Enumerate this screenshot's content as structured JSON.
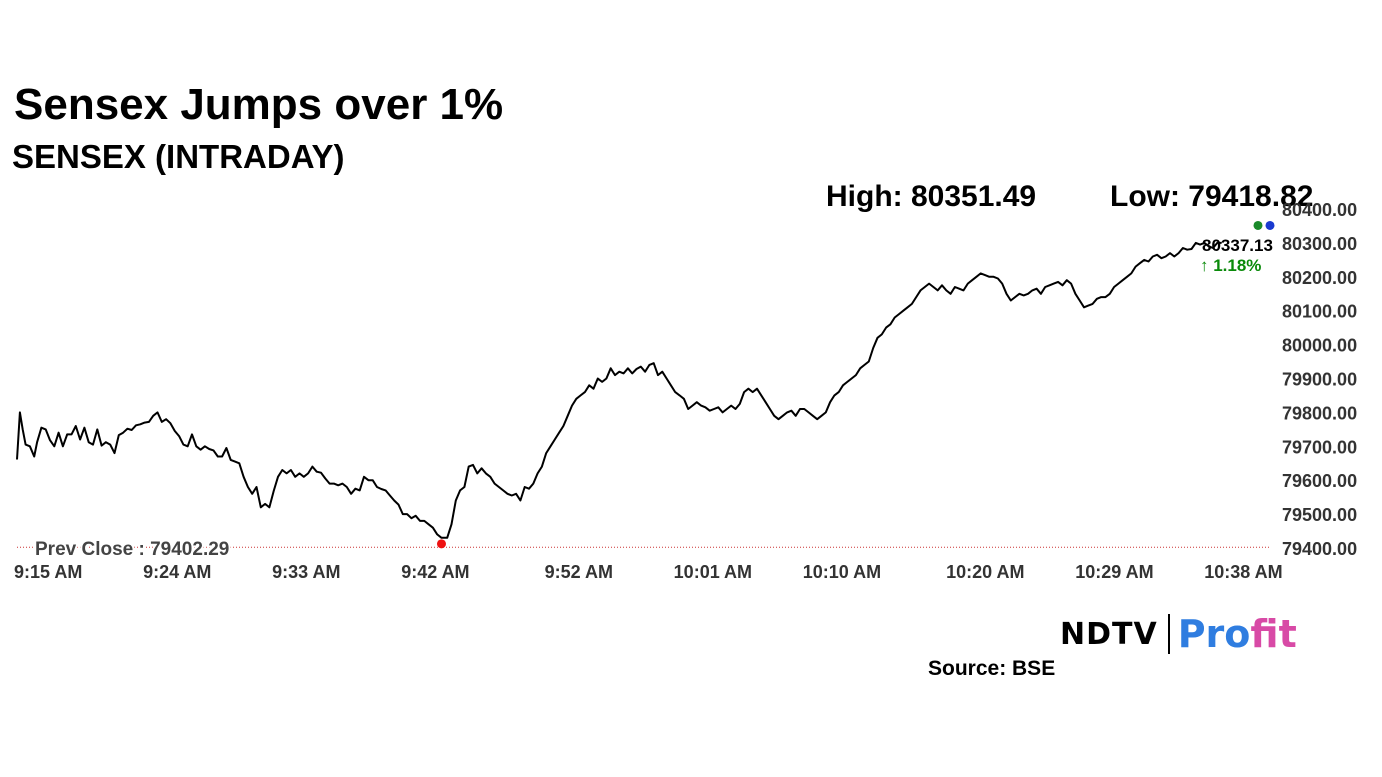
{
  "header": {
    "title": "Sensex Jumps over 1%",
    "subtitle": "SENSEX (INTRADAY)",
    "high_label": "High: 80351.49",
    "low_label": "Low: 79418.82"
  },
  "colors": {
    "line": "#000000",
    "prev_close_line": "#cc3333",
    "up_green": "#0a8a0a",
    "low_marker": "#ee1111",
    "high_marker_green": "#1a8a2a",
    "high_marker_blue": "#1a3ad0"
  },
  "branding": {
    "ndtv": "NDTV",
    "profit_a": "Pro",
    "profit_b": "fit",
    "source": "Source: BSE"
  },
  "chart_data": {
    "type": "line",
    "title": "SENSEX (INTRADAY)",
    "xlabel": "",
    "ylabel": "",
    "ylim": [
      79400,
      80400
    ],
    "xlim": [
      0,
      88
    ],
    "yticks": [
      "80400.00",
      "80300.00",
      "80200.00",
      "80100.00",
      "80000.00",
      "79900.00",
      "79800.00",
      "79700.00",
      "79600.00",
      "79500.00",
      "79400.00"
    ],
    "xticks": [
      {
        "label": "9:15 AM",
        "t": 0
      },
      {
        "label": "9:24 AM",
        "t": 9
      },
      {
        "label": "9:33 AM",
        "t": 18
      },
      {
        "label": "9:42 AM",
        "t": 27
      },
      {
        "label": "9:52 AM",
        "t": 37
      },
      {
        "label": "10:01 AM",
        "t": 46
      },
      {
        "label": "10:10 AM",
        "t": 55
      },
      {
        "label": "10:20 AM",
        "t": 65
      },
      {
        "label": "10:29 AM",
        "t": 74
      },
      {
        "label": "10:38 AM",
        "t": 83
      }
    ],
    "prev_close": 79402.29,
    "prev_close_label": "Prev Close : 79402.29",
    "last_value_label": "80337.13",
    "change_label": "↑ 1.18%",
    "high": 80351.49,
    "low": 79418.82,
    "series": [
      {
        "points": [
          [
            0,
            79661
          ],
          [
            0.2,
            79800
          ],
          [
            0.4,
            79750
          ],
          [
            0.6,
            79705
          ],
          [
            0.9,
            79700
          ],
          [
            1.2,
            79670
          ],
          [
            1.4,
            79712
          ],
          [
            1.7,
            79755
          ],
          [
            2.0,
            79750
          ],
          [
            2.3,
            79718
          ],
          [
            2.6,
            79700
          ],
          [
            2.9,
            79740
          ],
          [
            3.2,
            79700
          ],
          [
            3.5,
            79735
          ],
          [
            3.8,
            79735
          ],
          [
            4.1,
            79760
          ],
          [
            4.4,
            79720
          ],
          [
            4.7,
            79755
          ],
          [
            5.0,
            79712
          ],
          [
            5.3,
            79705
          ],
          [
            5.6,
            79750
          ],
          [
            5.9,
            79702
          ],
          [
            6.2,
            79712
          ],
          [
            6.5,
            79705
          ],
          [
            6.8,
            79680
          ],
          [
            7.1,
            79733
          ],
          [
            7.4,
            79740
          ],
          [
            7.7,
            79752
          ],
          [
            8.0,
            79748
          ],
          [
            8.3,
            79762
          ],
          [
            8.6,
            79765
          ],
          [
            8.9,
            79770
          ],
          [
            9.2,
            79772
          ],
          [
            9.5,
            79790
          ],
          [
            9.8,
            79800
          ],
          [
            10.1,
            79772
          ],
          [
            10.4,
            79780
          ],
          [
            10.7,
            79768
          ],
          [
            11.0,
            79745
          ],
          [
            11.3,
            79730
          ],
          [
            11.6,
            79705
          ],
          [
            11.9,
            79700
          ],
          [
            12.2,
            79735
          ],
          [
            12.5,
            79700
          ],
          [
            12.8,
            79690
          ],
          [
            13.1,
            79700
          ],
          [
            13.4,
            79692
          ],
          [
            13.7,
            79688
          ],
          [
            14.0,
            79670
          ],
          [
            14.3,
            79670
          ],
          [
            14.6,
            79695
          ],
          [
            14.9,
            79660
          ],
          [
            15.2,
            79655
          ],
          [
            15.5,
            79650
          ],
          [
            15.8,
            79610
          ],
          [
            16.1,
            79580
          ],
          [
            16.4,
            79560
          ],
          [
            16.7,
            79580
          ],
          [
            17.0,
            79520
          ],
          [
            17.3,
            79530
          ],
          [
            17.6,
            79520
          ],
          [
            17.9,
            79568
          ],
          [
            18.2,
            79610
          ],
          [
            18.5,
            79630
          ],
          [
            18.8,
            79620
          ],
          [
            19.1,
            79630
          ],
          [
            19.4,
            79610
          ],
          [
            19.7,
            79620
          ],
          [
            20.0,
            79610
          ],
          [
            20.3,
            79620
          ],
          [
            20.6,
            79640
          ],
          [
            20.9,
            79625
          ],
          [
            21.2,
            79622
          ],
          [
            21.5,
            79605
          ],
          [
            21.8,
            79590
          ],
          [
            22.1,
            79590
          ],
          [
            22.4,
            79585
          ],
          [
            22.7,
            79590
          ],
          [
            23.0,
            79580
          ],
          [
            23.3,
            79560
          ],
          [
            23.6,
            79575
          ],
          [
            23.9,
            79570
          ],
          [
            24.2,
            79610
          ],
          [
            24.5,
            79600
          ],
          [
            24.8,
            79600
          ],
          [
            25.1,
            79580
          ],
          [
            25.4,
            79574
          ],
          [
            25.7,
            79570
          ],
          [
            26.0,
            79555
          ],
          [
            26.3,
            79540
          ],
          [
            26.6,
            79528
          ],
          [
            26.9,
            79500
          ],
          [
            27.2,
            79500
          ],
          [
            27.5,
            79488
          ],
          [
            27.8,
            79495
          ],
          [
            28.1,
            79480
          ],
          [
            28.4,
            79480
          ],
          [
            28.7,
            79470
          ],
          [
            29.0,
            79460
          ],
          [
            29.3,
            79440
          ],
          [
            29.6,
            79430
          ],
          [
            30.0,
            79430
          ],
          [
            30.3,
            79470
          ],
          [
            30.6,
            79540
          ],
          [
            30.9,
            79570
          ],
          [
            31.2,
            79580
          ],
          [
            31.5,
            79640
          ],
          [
            31.8,
            79645
          ],
          [
            32.1,
            79620
          ],
          [
            32.4,
            79635
          ],
          [
            32.7,
            79620
          ],
          [
            33.0,
            79610
          ],
          [
            33.3,
            79590
          ],
          [
            33.6,
            79580
          ],
          [
            33.9,
            79570
          ],
          [
            34.2,
            79560
          ],
          [
            34.5,
            79555
          ],
          [
            34.8,
            79560
          ],
          [
            35.1,
            79540
          ],
          [
            35.4,
            79580
          ],
          [
            35.7,
            79575
          ],
          [
            36.0,
            79590
          ],
          [
            36.3,
            79620
          ],
          [
            36.6,
            79640
          ],
          [
            36.9,
            79680
          ],
          [
            37.2,
            79700
          ],
          [
            37.5,
            79720
          ],
          [
            37.8,
            79740
          ],
          [
            38.1,
            79760
          ],
          [
            38.4,
            79790
          ],
          [
            38.7,
            79820
          ],
          [
            39.0,
            79840
          ],
          [
            39.3,
            79850
          ],
          [
            39.6,
            79860
          ],
          [
            39.9,
            79880
          ],
          [
            40.2,
            79870
          ],
          [
            40.5,
            79900
          ],
          [
            40.8,
            79890
          ],
          [
            41.1,
            79900
          ],
          [
            41.4,
            79930
          ],
          [
            41.7,
            79910
          ],
          [
            42.0,
            79920
          ],
          [
            42.3,
            79915
          ],
          [
            42.6,
            79930
          ],
          [
            42.9,
            79915
          ],
          [
            43.2,
            79928
          ],
          [
            43.5,
            79935
          ],
          [
            43.8,
            79920
          ],
          [
            44.1,
            79940
          ],
          [
            44.4,
            79945
          ],
          [
            44.7,
            79910
          ],
          [
            45.0,
            79920
          ],
          [
            45.3,
            79900
          ],
          [
            45.6,
            79880
          ],
          [
            45.9,
            79860
          ],
          [
            46.2,
            79850
          ],
          [
            46.5,
            79840
          ],
          [
            46.8,
            79810
          ],
          [
            47.1,
            79820
          ],
          [
            47.4,
            79830
          ],
          [
            47.7,
            79820
          ],
          [
            48.0,
            79815
          ],
          [
            48.3,
            79805
          ],
          [
            48.6,
            79810
          ],
          [
            48.9,
            79815
          ],
          [
            49.2,
            79800
          ],
          [
            49.5,
            79810
          ],
          [
            49.8,
            79820
          ],
          [
            50.1,
            79810
          ],
          [
            50.4,
            79825
          ],
          [
            50.7,
            79860
          ],
          [
            51.0,
            79870
          ],
          [
            51.3,
            79860
          ],
          [
            51.6,
            79870
          ],
          [
            51.9,
            79850
          ],
          [
            52.2,
            79830
          ],
          [
            52.5,
            79810
          ],
          [
            52.8,
            79790
          ],
          [
            53.1,
            79780
          ],
          [
            53.4,
            79790
          ],
          [
            53.7,
            79800
          ],
          [
            54.0,
            79805
          ],
          [
            54.3,
            79790
          ],
          [
            54.6,
            79810
          ],
          [
            54.9,
            79810
          ],
          [
            55.2,
            79800
          ],
          [
            55.5,
            79790
          ],
          [
            55.8,
            79780
          ],
          [
            56.1,
            79790
          ],
          [
            56.4,
            79800
          ],
          [
            56.7,
            79830
          ],
          [
            57.0,
            79850
          ],
          [
            57.3,
            79860
          ],
          [
            57.6,
            79880
          ],
          [
            57.9,
            79890
          ],
          [
            58.2,
            79900
          ],
          [
            58.5,
            79910
          ],
          [
            58.8,
            79930
          ],
          [
            59.1,
            79940
          ],
          [
            59.4,
            79950
          ],
          [
            59.7,
            79990
          ],
          [
            60.0,
            80020
          ],
          [
            60.3,
            80030
          ],
          [
            60.6,
            80050
          ],
          [
            60.9,
            80060
          ],
          [
            61.2,
            80080
          ],
          [
            61.5,
            80090
          ],
          [
            61.8,
            80100
          ],
          [
            62.1,
            80110
          ],
          [
            62.4,
            80120
          ],
          [
            62.7,
            80140
          ],
          [
            63.0,
            80160
          ],
          [
            63.3,
            80170
          ],
          [
            63.6,
            80180
          ],
          [
            63.9,
            80170
          ],
          [
            64.2,
            80160
          ],
          [
            64.5,
            80175
          ],
          [
            64.8,
            80160
          ],
          [
            65.1,
            80150
          ],
          [
            65.4,
            80170
          ],
          [
            65.7,
            80165
          ],
          [
            66.0,
            80160
          ],
          [
            66.3,
            80180
          ],
          [
            66.6,
            80190
          ],
          [
            66.9,
            80200
          ],
          [
            67.2,
            80210
          ],
          [
            67.5,
            80205
          ],
          [
            67.8,
            80200
          ],
          [
            68.1,
            80200
          ],
          [
            68.4,
            80195
          ],
          [
            68.7,
            80180
          ],
          [
            69.0,
            80150
          ],
          [
            69.3,
            80130
          ],
          [
            69.6,
            80140
          ],
          [
            69.9,
            80150
          ],
          [
            70.2,
            80145
          ],
          [
            70.5,
            80150
          ],
          [
            70.8,
            80160
          ],
          [
            71.1,
            80165
          ],
          [
            71.4,
            80150
          ],
          [
            71.7,
            80170
          ],
          [
            72.0,
            80175
          ],
          [
            72.3,
            80180
          ],
          [
            72.6,
            80185
          ],
          [
            72.9,
            80175
          ],
          [
            73.2,
            80190
          ],
          [
            73.5,
            80180
          ],
          [
            73.8,
            80150
          ],
          [
            74.1,
            80130
          ],
          [
            74.4,
            80110
          ],
          [
            74.7,
            80115
          ],
          [
            75.0,
            80120
          ],
          [
            75.3,
            80135
          ],
          [
            75.6,
            80140
          ],
          [
            75.9,
            80140
          ],
          [
            76.2,
            80150
          ],
          [
            76.5,
            80170
          ],
          [
            76.8,
            80180
          ],
          [
            77.1,
            80190
          ],
          [
            77.4,
            80200
          ],
          [
            77.7,
            80210
          ],
          [
            78.0,
            80230
          ],
          [
            78.3,
            80240
          ],
          [
            78.6,
            80250
          ],
          [
            78.9,
            80245
          ],
          [
            79.2,
            80260
          ],
          [
            79.5,
            80265
          ],
          [
            79.8,
            80255
          ],
          [
            80.1,
            80260
          ],
          [
            80.4,
            80270
          ],
          [
            80.7,
            80260
          ],
          [
            81.0,
            80270
          ],
          [
            81.3,
            80285
          ],
          [
            81.6,
            80280
          ],
          [
            81.9,
            80282
          ],
          [
            82.2,
            80300
          ],
          [
            82.5,
            80295
          ],
          [
            82.8,
            80300
          ],
          [
            83.1,
            80290
          ],
          [
            83.4,
            80285
          ],
          [
            83.7,
            80300
          ],
          [
            84.0,
            80300
          ]
        ]
      }
    ]
  }
}
